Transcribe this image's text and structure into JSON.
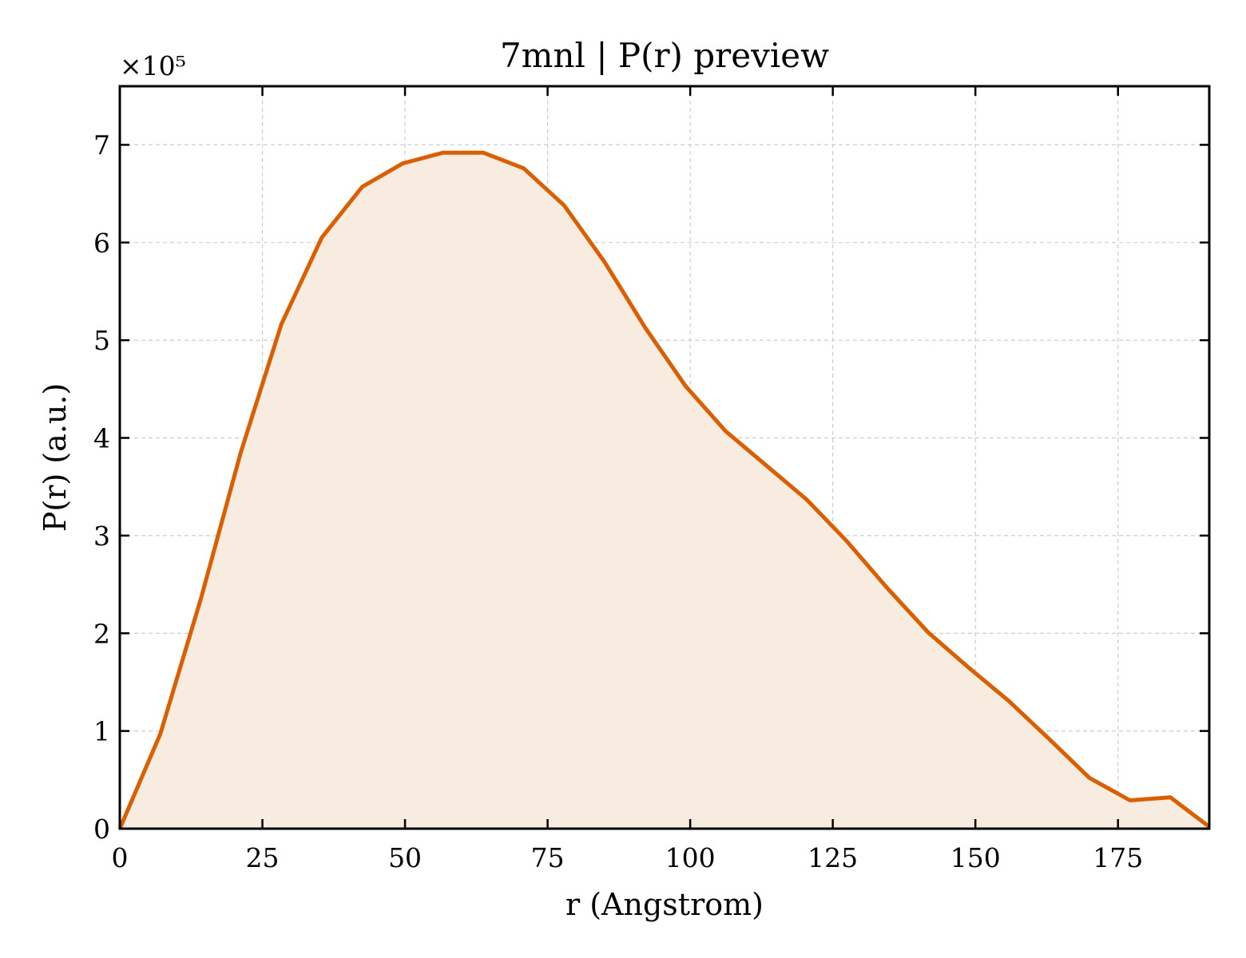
{
  "chart_data": {
    "type": "area",
    "title": "7mnl | P(r) preview",
    "xlabel": "r (Angstrom)",
    "ylabel": "P(r) (a.u.)",
    "y_multiplier_label": "×10⁵",
    "xlim": [
      0,
      191
    ],
    "ylim": [
      0,
      7.6
    ],
    "xticks": [
      0,
      25,
      50,
      75,
      100,
      125,
      150,
      175
    ],
    "yticks": [
      0,
      1,
      2,
      3,
      4,
      5,
      6,
      7
    ],
    "grid": true,
    "line_color": "#d95f02",
    "fill_color": "#f8ebe0",
    "series": [
      {
        "x": [
          0,
          7.1,
          14.2,
          21.2,
          28.3,
          35.4,
          42.5,
          49.6,
          56.7,
          63.7,
          70.8,
          77.9,
          85.0,
          92.1,
          99.2,
          106.2,
          113.3,
          120.4,
          127.5,
          134.6,
          141.7,
          148.8,
          155.8,
          162.9,
          170.0,
          177.1,
          184.2,
          191.0
        ],
        "y": [
          0,
          0.97,
          2.35,
          3.85,
          5.16,
          6.05,
          6.57,
          6.81,
          6.92,
          6.92,
          6.76,
          6.38,
          5.8,
          5.13,
          4.53,
          4.07,
          3.72,
          3.37,
          2.94,
          2.46,
          2.01,
          1.65,
          1.31,
          0.92,
          0.52,
          0.29,
          0.32,
          0.02
        ]
      }
    ]
  }
}
